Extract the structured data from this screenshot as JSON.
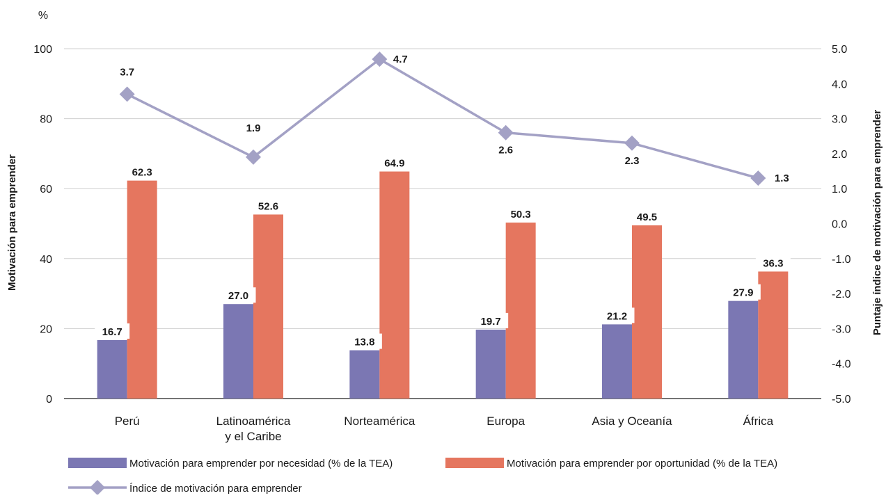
{
  "chart_data": {
    "type": "bar",
    "unit_label": "%",
    "ylabel": "Motivación para emprender",
    "y2label": "Puntaje índice de motivación para emprender",
    "ylim": [
      0,
      100
    ],
    "y_ticks": [
      0,
      20,
      40,
      60,
      80,
      100
    ],
    "y2lim": [
      -5.0,
      5.0
    ],
    "y2_ticks": [
      "-5.0",
      "-4.0",
      "-3.0",
      "-2.0",
      "-1.0",
      "0.0",
      "1.0",
      "2.0",
      "3.0",
      "4.0",
      "5.0"
    ],
    "grid": true,
    "legend_position": "bottom",
    "categories": [
      [
        "Perú"
      ],
      [
        "Latinoamérica",
        "y el Caribe"
      ],
      [
        "Norteamérica"
      ],
      [
        "Europa"
      ],
      [
        "Asia y Oceanía"
      ],
      [
        "África"
      ]
    ],
    "series": [
      {
        "name": "Motivación para emprender por necesidad (% de la TEA)",
        "type": "bar",
        "axis": "left",
        "color": "#7b77b3",
        "values": [
          16.7,
          27.0,
          13.8,
          19.7,
          21.2,
          27.9
        ],
        "labels": [
          "16.7",
          "27.0",
          "13.8",
          "19.7",
          "21.2",
          "27.9"
        ]
      },
      {
        "name": "Motivación para emprender por oportunidad (% de la TEA)",
        "type": "bar",
        "axis": "left",
        "color": "#e5765f",
        "values": [
          62.3,
          52.6,
          64.9,
          50.3,
          49.5,
          36.3
        ],
        "labels": [
          "62.3",
          "52.6",
          "64.9",
          "50.3",
          "49.5",
          "36.3"
        ]
      },
      {
        "name": "Índice de motivación para emprender",
        "type": "line",
        "axis": "right",
        "color": "#a3a1c5",
        "values": [
          3.7,
          1.9,
          4.7,
          2.6,
          2.3,
          1.3
        ],
        "labels": [
          "3.7",
          "1.9",
          "4.7",
          "2.6",
          "2.3",
          "1.3"
        ]
      }
    ]
  }
}
